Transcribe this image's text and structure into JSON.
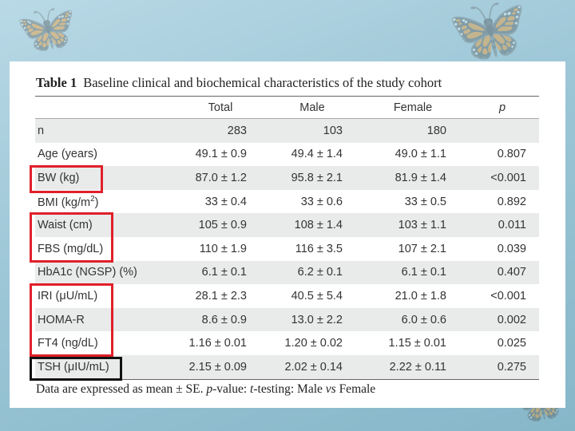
{
  "title": {
    "label": "Table 1",
    "text": "Baseline clinical and biochemical characteristics of the study cohort"
  },
  "table": {
    "headers": [
      "",
      "Total",
      "Male",
      "Female",
      "p"
    ],
    "rows": [
      [
        "n",
        "283",
        "103",
        "180",
        ""
      ],
      [
        "Age (years)",
        "49.1 ± 0.9",
        "49.4 ± 1.4",
        "49.0 ± 1.1",
        "0.807"
      ],
      [
        "BW (kg)",
        "87.0 ± 1.2",
        "95.8 ± 2.1",
        "81.9 ± 1.4",
        "<0.001"
      ],
      [
        "BMI (kg/m2)",
        "33 ± 0.4",
        "33 ± 0.6",
        "33 ± 0.5",
        "0.892"
      ],
      [
        "Waist (cm)",
        "105 ± 0.9",
        "108 ± 1.4",
        "103 ± 1.1",
        "0.011"
      ],
      [
        "FBS (mg/dL)",
        "110 ± 1.9",
        "116 ± 3.5",
        "107 ± 2.1",
        "0.039"
      ],
      [
        "HbA1c (NGSP) (%)",
        "6.1 ± 0.1",
        "6.2 ± 0.1",
        "6.1 ± 0.1",
        "0.407"
      ],
      [
        "IRI (μU/mL)",
        "28.1 ± 2.3",
        "40.5 ± 5.4",
        "21.0 ± 1.8",
        "<0.001"
      ],
      [
        "HOMA-R",
        "8.6 ± 0.9",
        "13.0 ± 2.2",
        "6.0 ± 0.6",
        "0.002"
      ],
      [
        "FT4 (ng/dL)",
        "1.16 ± 0.01",
        "1.20 ± 0.02",
        "1.15 ± 0.01",
        "0.025"
      ],
      [
        "TSH (μIU/mL)",
        "2.15 ± 0.09",
        "2.02 ± 0.14",
        "2.22 ± 0.11",
        "0.275"
      ]
    ]
  },
  "footnote": {
    "part1": "Data are expressed as mean ± SE.",
    "p": "p",
    "part2": "-value:",
    "t": "t",
    "part3": "-testing: Male",
    "vs": "vs",
    "part4": "Female"
  },
  "colors": {
    "highlight_red": "#e0202a",
    "highlight_black": "#111111",
    "background": "#9cc6d6"
  }
}
